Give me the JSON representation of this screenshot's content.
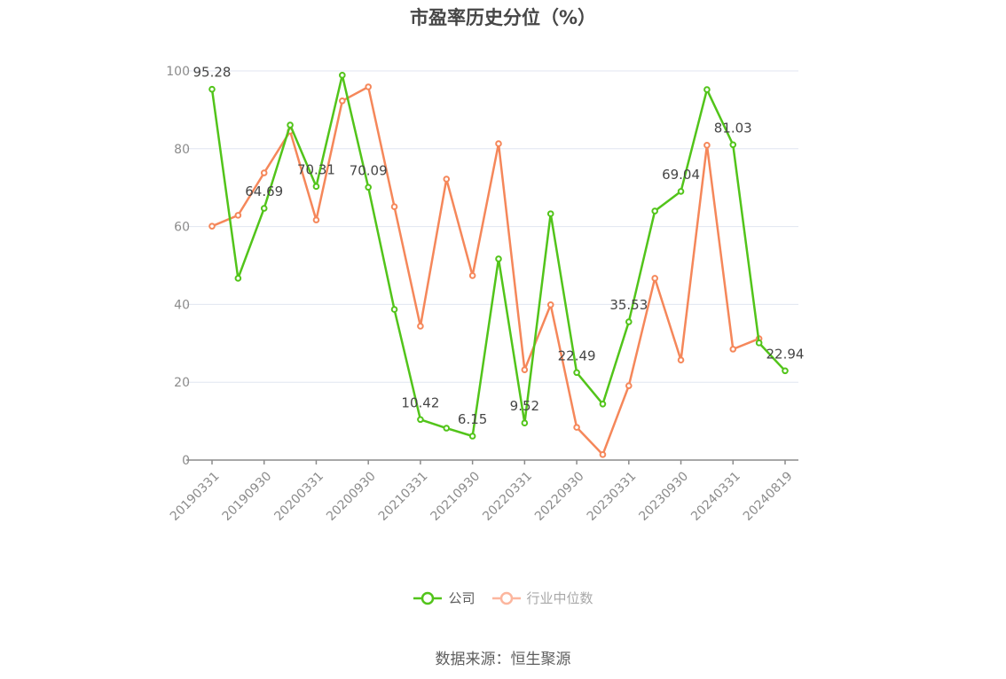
{
  "title": "市盈率历史分位（%）",
  "source": "数据来源：恒生聚源",
  "legend": [
    {
      "label": "公司",
      "color": "#52c41a",
      "text_color": "#5e5e5e"
    },
    {
      "label": "行业中位数",
      "color": "#fcb69e",
      "text_color": "#a8a8a8"
    }
  ],
  "chart_data": {
    "type": "line",
    "title": "市盈率历史分位（%）",
    "xlabel": "",
    "ylabel": "",
    "ylim": [
      0,
      100
    ],
    "yticks": [
      0,
      20,
      40,
      60,
      80,
      100
    ],
    "grid": true,
    "legend_position": "bottom",
    "x": [
      "20190331",
      "20190630",
      "20190930",
      "20191231",
      "20200331",
      "20200630",
      "20200930",
      "20201231",
      "20210331",
      "20210630",
      "20210930",
      "20211231",
      "20220331",
      "20220630",
      "20220930",
      "20221231",
      "20230331",
      "20230630",
      "20230930",
      "20231231",
      "20240331",
      "20240630",
      "20240819"
    ],
    "xtick_labels": [
      "20190331",
      "20190930",
      "20200331",
      "20200930",
      "20210331",
      "20210930",
      "20220331",
      "20220930",
      "20230331",
      "20230930",
      "20240331",
      "20240819"
    ],
    "series": [
      {
        "name": "公司",
        "color": "#52c41a",
        "values": [
          95.28,
          46.7,
          64.69,
          86.1,
          70.31,
          98.9,
          70.09,
          38.7,
          10.42,
          8.2,
          6.15,
          51.7,
          9.52,
          63.3,
          22.49,
          14.4,
          35.53,
          64.0,
          69.04,
          95.2,
          81.03,
          30.1,
          22.94
        ],
        "labeled_indices": [
          0,
          2,
          4,
          6,
          8,
          10,
          12,
          14,
          16,
          18,
          20,
          22
        ]
      },
      {
        "name": "行业中位数",
        "color": "#f5875a",
        "values": [
          60.1,
          62.9,
          73.8,
          84.5,
          61.7,
          92.3,
          95.9,
          65.1,
          34.4,
          72.2,
          47.4,
          81.3,
          23.2,
          39.9,
          8.4,
          1.4,
          19.1,
          46.7,
          25.7,
          80.9,
          28.5,
          31.2,
          null
        ]
      }
    ]
  }
}
